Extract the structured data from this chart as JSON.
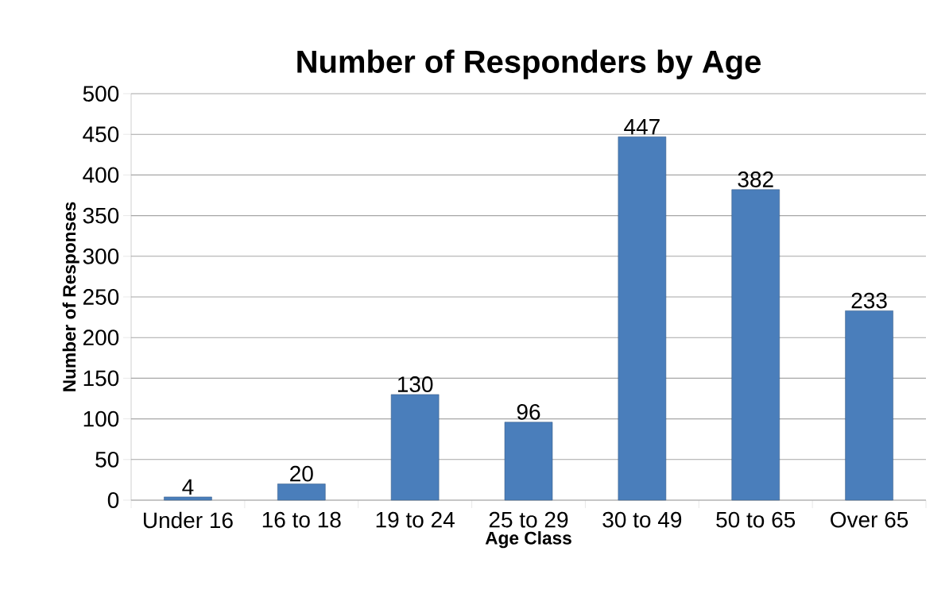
{
  "chart_data": {
    "type": "bar",
    "title": "Number of Responders by Age",
    "xlabel": "Age Class",
    "ylabel": "Number of Responses",
    "categories": [
      "Under 16",
      "16 to 18",
      "19 to 24",
      "25 to 29",
      "30 to 49",
      "50 to 65",
      "Over 65"
    ],
    "values": [
      4,
      20,
      130,
      96,
      447,
      382,
      233
    ],
    "color": "#4a7ebb",
    "ylim": [
      0,
      500
    ],
    "yticks": [
      0,
      50,
      100,
      150,
      200,
      250,
      300,
      350,
      400,
      450,
      500
    ],
    "grid": "y",
    "data_labels": true
  }
}
